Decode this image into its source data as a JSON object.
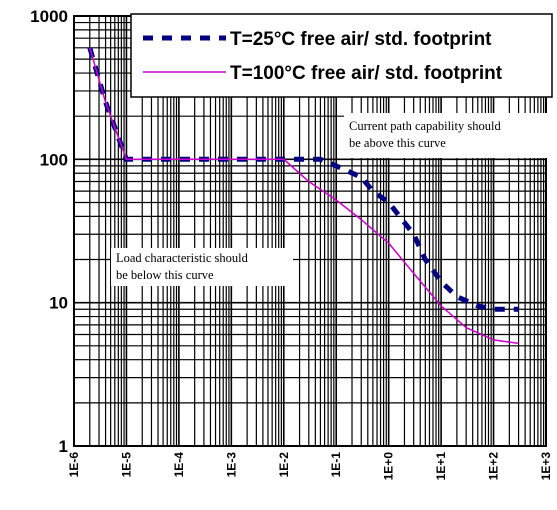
{
  "chart_data": {
    "type": "line",
    "x_scale": "log",
    "y_scale": "log",
    "xlim": [
      1e-06,
      1000.0
    ],
    "ylim": [
      1,
      1000
    ],
    "grid": true,
    "legend_position": "top-right",
    "x_tick_labels": [
      "1E-6",
      "1E-5",
      "1E-4",
      "1E-3",
      "1E-2",
      "1E-1",
      "1E+0",
      "1E+1",
      "1E+2",
      "1E+3"
    ],
    "y_tick_labels": [
      "1",
      "10",
      "100",
      "1000"
    ],
    "series": [
      {
        "name": "T=25°C  free air/ std. footprint",
        "color": "#000080",
        "style": "dashed",
        "x": [
          2e-06,
          4e-06,
          1e-05,
          0.001,
          0.01,
          0.05,
          0.1,
          0.3,
          0.5,
          1,
          3,
          5,
          10,
          20,
          50,
          100,
          200,
          300
        ],
        "y": [
          600,
          250,
          100,
          100,
          100,
          100,
          90,
          75,
          60,
          50,
          30,
          20,
          14,
          11,
          9.5,
          9,
          9,
          9
        ]
      },
      {
        "name": "T=100°C free air/ std. footprint",
        "color": "#cc00cc",
        "style": "solid",
        "x": [
          2e-06,
          4e-06,
          1e-05,
          0.001,
          0.01,
          0.03,
          0.1,
          0.3,
          1,
          3,
          10,
          30,
          100,
          300
        ],
        "y": [
          600,
          250,
          100,
          100,
          100,
          70,
          52,
          38,
          26,
          16,
          9.5,
          6.7,
          5.5,
          5.2
        ]
      }
    ],
    "annotations": [
      {
        "line1": "Current path capability should",
        "line2": "be above this curve"
      },
      {
        "line1": "Load characteristic should",
        "line2": "be below this curve"
      }
    ]
  }
}
